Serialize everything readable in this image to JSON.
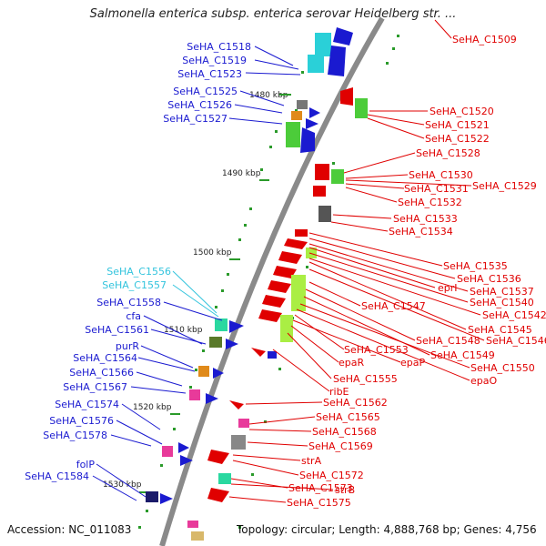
{
  "title": "Salmonella enterica subsp. enterica serovar Heidelberg str. ...",
  "footer": {
    "accession": "Accession: NC_011083",
    "info": "Topology: circular; Length: 4,888,768 bp; Genes: 4,756"
  },
  "colors": {
    "backbone": "#8a8a8a",
    "left_label": "#1a1ad0",
    "left_label_alt": "#33c4dd",
    "right_label": "#e00000",
    "tick": "#2a9a2a"
  },
  "kbp_markers": [
    "1480 kbp",
    "1490 kbp",
    "1500 kbp",
    "1510 kbp",
    "1520 kbp",
    "1530 kbp"
  ],
  "left_labels": [
    {
      "text": "SeHA_C1518",
      "kind": "blue"
    },
    {
      "text": "SeHA_C1519",
      "kind": "blue"
    },
    {
      "text": "SeHA_C1523",
      "kind": "blue"
    },
    {
      "text": "SeHA_C1525",
      "kind": "blue"
    },
    {
      "text": "SeHA_C1526",
      "kind": "blue"
    },
    {
      "text": "SeHA_C1527",
      "kind": "blue"
    },
    {
      "text": "SeHA_C1556",
      "kind": "cyan"
    },
    {
      "text": "SeHA_C1557",
      "kind": "cyan"
    },
    {
      "text": "SeHA_C1558",
      "kind": "blue"
    },
    {
      "text": "cfa",
      "kind": "blue"
    },
    {
      "text": "SeHA_C1561",
      "kind": "blue"
    },
    {
      "text": "purR",
      "kind": "blue"
    },
    {
      "text": "SeHA_C1564",
      "kind": "blue"
    },
    {
      "text": "SeHA_C1566",
      "kind": "blue"
    },
    {
      "text": "SeHA_C1567",
      "kind": "blue"
    },
    {
      "text": "SeHA_C1574",
      "kind": "blue"
    },
    {
      "text": "SeHA_C1576",
      "kind": "blue"
    },
    {
      "text": "SeHA_C1578",
      "kind": "blue"
    },
    {
      "text": "folP",
      "kind": "blue"
    },
    {
      "text": "SeHA_C1584",
      "kind": "blue"
    }
  ],
  "right_labels": [
    "SeHA_C1509",
    "SeHA_C1520",
    "SeHA_C1521",
    "SeHA_C1522",
    "SeHA_C1528",
    "SeHA_C1530",
    "SeHA_C1529",
    "SeHA_C1531",
    "SeHA_C1532",
    "SeHA_C1533",
    "SeHA_C1534",
    "SeHA_C1535",
    "SeHA_C1536",
    "SeHA_C1537",
    "eprI",
    "SeHA_C1540",
    "SeHA_C1547",
    "SeHA_C1542",
    "SeHA_C1545",
    "SeHA_C1546",
    "SeHA_C1548",
    "SeHA_C1553",
    "SeHA_C1549",
    "epaR",
    "epaP",
    "SeHA_C1550",
    "SeHA_C1555",
    "epaO",
    "ribE",
    "SeHA_C1562",
    "SeHA_C1565",
    "SeHA_C1568",
    "SeHA_C1569",
    "strA",
    "SeHA_C1572",
    "SeHA_C1573",
    "strB",
    "SeHA_C1575"
  ]
}
